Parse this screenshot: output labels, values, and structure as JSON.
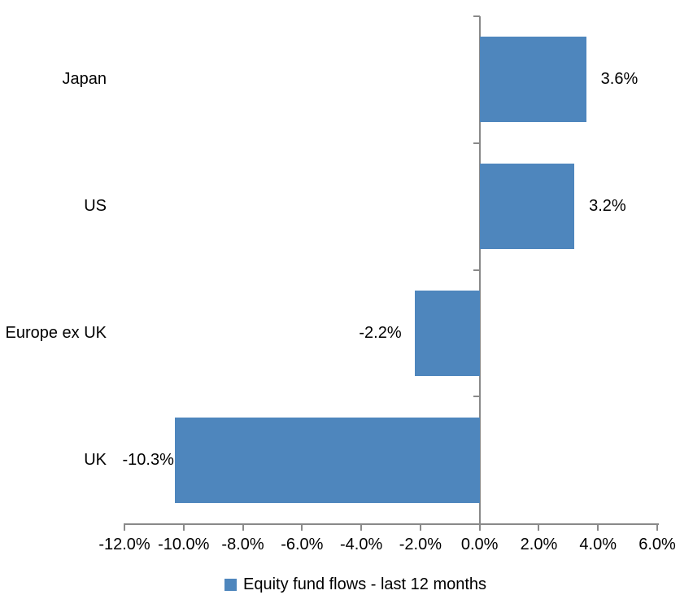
{
  "chart_data": {
    "type": "bar",
    "orientation": "horizontal",
    "title": "",
    "categories": [
      "Japan",
      "US",
      "Europe ex UK",
      "UK"
    ],
    "series": [
      {
        "name": "Equity fund flows - last 12 months",
        "values": [
          3.6,
          3.2,
          -2.2,
          -10.3
        ],
        "data_labels": [
          "3.6%",
          "3.2%",
          "-2.2%",
          "-10.3%"
        ]
      }
    ],
    "xlabel": "",
    "ylabel": "",
    "xlim": [
      -12,
      6
    ],
    "x_tick_step": 2,
    "x_tick_labels": [
      "-12.0%",
      "-10.0%",
      "-8.0%",
      "-6.0%",
      "-4.0%",
      "-2.0%",
      "0.0%",
      "2.0%",
      "4.0%",
      "6.0%"
    ],
    "grid": "off",
    "legend": {
      "position": "bottom",
      "label": "Equity fund flows - last 12 months",
      "swatch_color": "#4E86BD"
    },
    "colors": {
      "bar": "#4E86BD",
      "axis": "#898989",
      "text": "#000000",
      "background": "#FFFFFF"
    }
  }
}
